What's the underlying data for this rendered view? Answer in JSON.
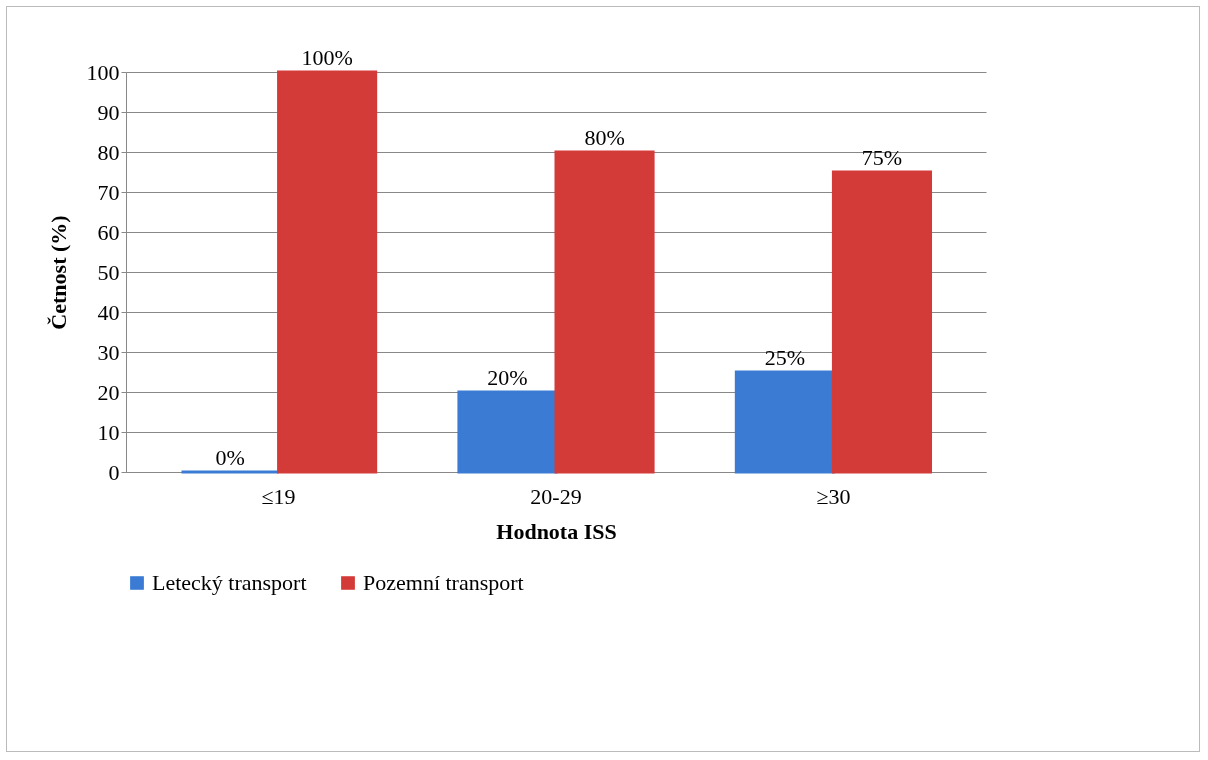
{
  "chart_data": {
    "type": "bar",
    "xlabel": "Hodnota ISS",
    "ylabel": "Četnost (%)",
    "categories": [
      "≤19",
      "20-29",
      "≥30"
    ],
    "series": [
      {
        "name": "Letecký transport",
        "color": "#3b7bd4",
        "values": [
          0,
          20,
          25
        ],
        "value_labels": [
          "0%",
          "20%",
          "25%"
        ]
      },
      {
        "name": "Pozemní transport",
        "color": "#d33b38",
        "values": [
          100,
          80,
          75
        ],
        "value_labels": [
          "100%",
          "80%",
          "75%"
        ]
      }
    ],
    "ylim": [
      0,
      100
    ],
    "yticks": [
      0,
      10,
      20,
      30,
      40,
      50,
      60,
      70,
      80,
      90,
      100
    ],
    "grid": "y",
    "legend": "bottom"
  }
}
